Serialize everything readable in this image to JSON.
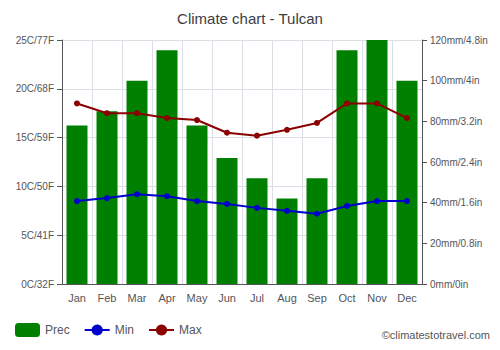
{
  "chart_data": {
    "type": "bar",
    "title": "Climate chart - Tulcan",
    "categories": [
      "Jan",
      "Feb",
      "Mar",
      "Apr",
      "May",
      "Jun",
      "Jul",
      "Aug",
      "Sep",
      "Oct",
      "Nov",
      "Dec"
    ],
    "series": [
      {
        "name": "Prec",
        "type": "bar",
        "axis": "y2",
        "color": "#008000",
        "values": [
          78,
          85,
          100,
          115,
          78,
          62,
          52,
          42,
          52,
          115,
          120,
          100
        ]
      },
      {
        "name": "Min",
        "type": "line",
        "marker": "circle",
        "color": "#0000cc",
        "values": [
          8.5,
          8.8,
          9.2,
          9.0,
          8.5,
          8.2,
          7.8,
          7.5,
          7.2,
          8.0,
          8.5,
          8.5
        ]
      },
      {
        "name": "Max",
        "type": "line",
        "marker": "circle",
        "color": "#8b0000",
        "values": [
          18.5,
          17.5,
          17.5,
          17.0,
          16.8,
          15.5,
          15.2,
          15.8,
          16.5,
          18.5,
          18.5,
          17.0
        ]
      }
    ],
    "ylim": [
      0,
      25
    ],
    "yticks": [
      {
        "value": 0,
        "label": "0C/32F"
      },
      {
        "value": 5,
        "label": "5C/41F"
      },
      {
        "value": 10,
        "label": "10C/50F"
      },
      {
        "value": 15,
        "label": "15C/59F"
      },
      {
        "value": 20,
        "label": "20C/68F"
      },
      {
        "value": 25,
        "label": "25C/77F"
      }
    ],
    "y2lim": [
      0,
      120
    ],
    "y2ticks": [
      {
        "value": 0,
        "label": "0mm/0in"
      },
      {
        "value": 20,
        "label": "20mm/0.8in"
      },
      {
        "value": 40,
        "label": "40mm/1.6in"
      },
      {
        "value": 60,
        "label": "60mm/2.4in"
      },
      {
        "value": 80,
        "label": "80mm/3.2in"
      },
      {
        "value": 100,
        "label": "100mm/4in"
      },
      {
        "value": 120,
        "label": "120mm/4.8in"
      }
    ],
    "grid": true,
    "legend": "lower left",
    "annotations": [
      "©climatestotravel.com"
    ]
  }
}
